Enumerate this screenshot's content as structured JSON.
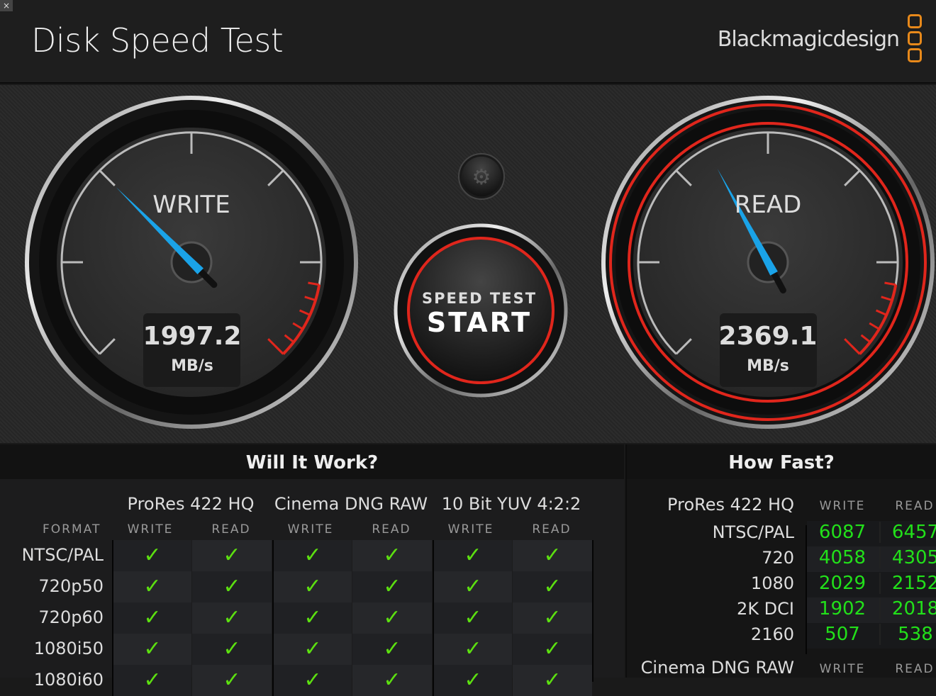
{
  "window": {
    "close_icon": "×",
    "title": "Disk Speed Test",
    "brand": "Blackmagicdesign"
  },
  "gauges": {
    "scale_max": 6000,
    "write": {
      "label": "WRITE",
      "value": "1997.2",
      "numeric": 1997.2,
      "unit": "MB/s"
    },
    "read": {
      "label": "READ",
      "value": "2369.1",
      "numeric": 2369.1,
      "unit": "MB/s"
    },
    "start": {
      "line1": "SPEED TEST",
      "line2": "START"
    },
    "settings_icon": "gear-icon",
    "colors": {
      "needle": "#1aa3e8",
      "red": "#e0261c"
    }
  },
  "will": {
    "title": "Will It Work?",
    "format_header": "FORMAT",
    "groups": [
      "ProRes 422 HQ",
      "Cinema DNG RAW",
      "10 Bit YUV 4:2:2"
    ],
    "sub": [
      "WRITE",
      "READ"
    ],
    "rows": [
      {
        "format": "NTSC/PAL",
        "checks": [
          "✓",
          "✓",
          "✓",
          "✓",
          "✓",
          "✓"
        ]
      },
      {
        "format": "720p50",
        "checks": [
          "✓",
          "✓",
          "✓",
          "✓",
          "✓",
          "✓"
        ]
      },
      {
        "format": "720p60",
        "checks": [
          "✓",
          "✓",
          "✓",
          "✓",
          "✓",
          "✓"
        ]
      },
      {
        "format": "1080i50",
        "checks": [
          "✓",
          "✓",
          "✓",
          "✓",
          "✓",
          "✓"
        ]
      },
      {
        "format": "1080i60",
        "checks": [
          "✓",
          "✓",
          "✓",
          "✓",
          "✓",
          "✓"
        ]
      }
    ]
  },
  "fast": {
    "title": "How Fast?",
    "sections": [
      {
        "codec": "ProRes 422 HQ",
        "write": "WRITE",
        "read": "READ",
        "rows": [
          {
            "format": "NTSC/PAL",
            "write": "6087",
            "read": "6457"
          },
          {
            "format": "720",
            "write": "4058",
            "read": "4305"
          },
          {
            "format": "1080",
            "write": "2029",
            "read": "2152"
          },
          {
            "format": "2K DCI",
            "write": "1902",
            "read": "2018"
          },
          {
            "format": "2160",
            "write": "507",
            "read": "538"
          }
        ]
      },
      {
        "codec": "Cinema DNG RAW",
        "write": "WRITE",
        "read": "READ"
      }
    ]
  }
}
